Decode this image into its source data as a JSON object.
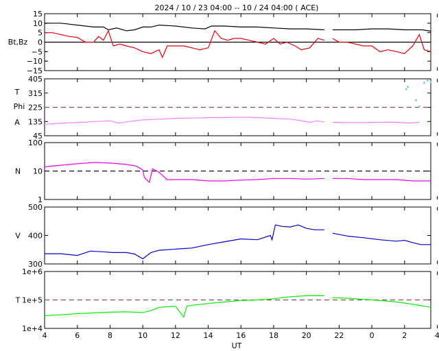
{
  "title": "2024 / 10 / 23   04:00 -- 10 / 24   04:00 ( ACE)",
  "chart_data": {
    "type": "line",
    "title": "2024 / 10 / 23   04:00 -- 10 / 24   04:00 ( ACE)",
    "xlabel": "UT",
    "x_ticks": [
      "4",
      "6",
      "8",
      "10",
      "12",
      "14",
      "16",
      "18",
      "20",
      "22",
      "0",
      "2",
      "4"
    ],
    "x_range_hours": [
      4,
      27.6
    ],
    "panels": [
      {
        "id": "magnetic-field",
        "ylabel_lines": [
          "Bt,Bz"
        ],
        "ylim": [
          -15,
          15
        ],
        "y_ticks": [
          "15",
          "10",
          "5",
          "0",
          "−5",
          "−10",
          "−15"
        ],
        "y_tick_values": [
          15,
          10,
          5,
          0,
          -5,
          -10,
          -15
        ],
        "scale": "linear",
        "reference_line": {
          "y": 0,
          "style": "solid",
          "color": "#000000"
        },
        "series": [
          {
            "key": "Bt",
            "color": "#000000",
            "points": [
              [
                4,
                10
              ],
              [
                5,
                10
              ],
              [
                6,
                9
              ],
              [
                7,
                8
              ],
              [
                7.6,
                8
              ],
              [
                7.9,
                6.5
              ],
              [
                8.4,
                7.5
              ],
              [
                9,
                6
              ],
              [
                9.5,
                6.5
              ],
              [
                10,
                8
              ],
              [
                10.5,
                8
              ],
              [
                11,
                9
              ],
              [
                12,
                8.5
              ],
              [
                13,
                7.5
              ],
              [
                13.8,
                7
              ],
              [
                14.2,
                8.5
              ],
              [
                15,
                8.5
              ],
              [
                16,
                8
              ],
              [
                17,
                8
              ],
              [
                18,
                7.5
              ],
              [
                19,
                7
              ],
              [
                20,
                7
              ],
              [
                21.1,
                6.5
              ],
              [
                21.4,
                null
              ],
              [
                21.6,
                6.5
              ],
              [
                23,
                6.5
              ],
              [
                24,
                7
              ],
              [
                25,
                7
              ],
              [
                26,
                6.5
              ],
              [
                27.1,
                6.5
              ],
              [
                27.6,
                5.8
              ]
            ]
          },
          {
            "key": "Bz",
            "color": "#e8000b",
            "points": [
              [
                4,
                5
              ],
              [
                4.5,
                5
              ],
              [
                5,
                4
              ],
              [
                5.5,
                3
              ],
              [
                6,
                2.5
              ],
              [
                6.5,
                0
              ],
              [
                7,
                0
              ],
              [
                7.3,
                3
              ],
              [
                7.6,
                1
              ],
              [
                7.9,
                6
              ],
              [
                8.2,
                -2
              ],
              [
                8.6,
                -1
              ],
              [
                9,
                -2
              ],
              [
                9.5,
                -3
              ],
              [
                10,
                -5
              ],
              [
                10.5,
                -6
              ],
              [
                11,
                -4
              ],
              [
                11.2,
                -8
              ],
              [
                11.5,
                -2
              ],
              [
                12,
                -2
              ],
              [
                12.5,
                -2
              ],
              [
                13,
                -3
              ],
              [
                13.5,
                -4
              ],
              [
                14,
                -3
              ],
              [
                14.4,
                6
              ],
              [
                14.8,
                2
              ],
              [
                15.2,
                1
              ],
              [
                15.6,
                2
              ],
              [
                16,
                2
              ],
              [
                16.5,
                1
              ],
              [
                17,
                0
              ],
              [
                17.5,
                -1
              ],
              [
                18,
                2
              ],
              [
                18.4,
                -1
              ],
              [
                18.8,
                0
              ],
              [
                19.3,
                -2
              ],
              [
                19.7,
                -4
              ],
              [
                20.2,
                -3
              ],
              [
                20.7,
                2
              ],
              [
                21.1,
                1
              ],
              [
                21.4,
                null
              ],
              [
                21.6,
                2
              ],
              [
                22,
                0
              ],
              [
                22.5,
                0
              ],
              [
                23,
                -1
              ],
              [
                23.5,
                -2
              ],
              [
                24,
                -2
              ],
              [
                24.5,
                -5
              ],
              [
                25,
                -4
              ],
              [
                25.5,
                -5
              ],
              [
                26,
                -6
              ],
              [
                26.5,
                -2
              ],
              [
                26.9,
                4
              ],
              [
                27.2,
                -4
              ],
              [
                27.6,
                -5
              ]
            ]
          }
        ]
      },
      {
        "id": "angles",
        "ylabel_lines": [
          "T",
          "Phi",
          "A"
        ],
        "ylim": [
          45,
          405
        ],
        "y_ticks": [
          "405",
          "315",
          "225",
          "135",
          "45"
        ],
        "y_tick_values": [
          405,
          315,
          225,
          135,
          45
        ],
        "scale": "linear",
        "reference_line": {
          "y": 225,
          "style": "dashed",
          "color": "#8b4a4a"
        },
        "series": [
          {
            "key": "angle",
            "color": "#ff80ff",
            "points": [
              [
                4,
                117
              ],
              [
                5,
                125
              ],
              [
                6,
                128
              ],
              [
                7,
                135
              ],
              [
                8,
                140
              ],
              [
                8.5,
                125
              ],
              [
                9,
                133
              ],
              [
                10,
                145
              ],
              [
                11,
                150
              ],
              [
                12,
                155
              ],
              [
                13,
                157
              ],
              [
                14,
                160
              ],
              [
                15,
                160
              ],
              [
                16,
                162
              ],
              [
                17,
                160
              ],
              [
                18,
                155
              ],
              [
                19,
                150
              ],
              [
                19.7,
                140
              ],
              [
                20.2,
                130
              ],
              [
                20.7,
                140
              ],
              [
                21.1,
                130
              ],
              [
                21.4,
                null
              ],
              [
                21.6,
                130
              ],
              [
                22.5,
                128
              ],
              [
                23.5,
                128
              ],
              [
                24.5,
                130
              ],
              [
                25.5,
                130
              ],
              [
                26.3,
                125
              ],
              [
                26.9,
                130
              ]
            ]
          },
          {
            "key": "phi-scatter",
            "color": "#87ceeb",
            "points": [
              [
                26.1,
                340
              ],
              [
                26.2,
                355
              ],
              [
                26.7,
                270
              ],
              [
                26.9,
                230
              ],
              [
                27.2,
                380
              ],
              [
                27.4,
                395
              ],
              [
                27.6,
                385
              ]
            ]
          }
        ]
      },
      {
        "id": "density",
        "ylabel_lines": [
          "N"
        ],
        "ylim": [
          1,
          100
        ],
        "y_ticks": [
          "100",
          "10",
          "1"
        ],
        "y_tick_values": [
          100,
          10,
          1
        ],
        "scale": "log",
        "reference_line": {
          "y": 10,
          "style": "dashed",
          "color": "#000000"
        },
        "series": [
          {
            "key": "N",
            "color": "#ee00ee",
            "points": [
              [
                4,
                14
              ],
              [
                5,
                16
              ],
              [
                6,
                18
              ],
              [
                7,
                20
              ],
              [
                8,
                19
              ],
              [
                9,
                17
              ],
              [
                9.6,
                15
              ],
              [
                10,
                11
              ],
              [
                10.1,
                6
              ],
              [
                10.4,
                4
              ],
              [
                10.6,
                12
              ],
              [
                11,
                9
              ],
              [
                11.5,
                5
              ],
              [
                12,
                5
              ],
              [
                13,
                5
              ],
              [
                14,
                4.5
              ],
              [
                15,
                4.5
              ],
              [
                16,
                4.8
              ],
              [
                17,
                5
              ],
              [
                18,
                5.5
              ],
              [
                19,
                5.5
              ],
              [
                20,
                5.2
              ],
              [
                21.1,
                5.5
              ],
              [
                21.4,
                null
              ],
              [
                21.6,
                5.5
              ],
              [
                22.5,
                5.5
              ],
              [
                23.5,
                5
              ],
              [
                24.5,
                5
              ],
              [
                25.5,
                5
              ],
              [
                26.5,
                4.5
              ],
              [
                27.6,
                4.5
              ]
            ]
          }
        ]
      },
      {
        "id": "speed",
        "ylabel_lines": [
          "V"
        ],
        "ylim": [
          300,
          500
        ],
        "y_ticks": [
          "500",
          "400",
          "300"
        ],
        "y_tick_values": [
          500,
          400,
          300
        ],
        "scale": "linear",
        "reference_line": null,
        "series": [
          {
            "key": "V",
            "color": "#0000cc",
            "points": [
              [
                4,
                336
              ],
              [
                5,
                336
              ],
              [
                6,
                330
              ],
              [
                6.8,
                345
              ],
              [
                7.5,
                343
              ],
              [
                8.2,
                340
              ],
              [
                9,
                340
              ],
              [
                9.5,
                335
              ],
              [
                10,
                318
              ],
              [
                10.5,
                340
              ],
              [
                11,
                348
              ],
              [
                12,
                352
              ],
              [
                13,
                356
              ],
              [
                14,
                368
              ],
              [
                15,
                378
              ],
              [
                16,
                388
              ],
              [
                17,
                385
              ],
              [
                17.8,
                400
              ],
              [
                17.9,
                385
              ],
              [
                18.1,
                437
              ],
              [
                18.5,
                432
              ],
              [
                19,
                430
              ],
              [
                19.5,
                437
              ],
              [
                20,
                425
              ],
              [
                20.5,
                420
              ],
              [
                21.1,
                420
              ],
              [
                21.4,
                null
              ],
              [
                21.6,
                408
              ],
              [
                22.5,
                398
              ],
              [
                23.5,
                392
              ],
              [
                24.5,
                385
              ],
              [
                25.5,
                380
              ],
              [
                26,
                383
              ],
              [
                26.5,
                375
              ],
              [
                27,
                368
              ],
              [
                27.6,
                368
              ]
            ]
          }
        ]
      },
      {
        "id": "temperature",
        "ylabel_lines": [
          "T"
        ],
        "ylim": [
          10000,
          1000000
        ],
        "y_ticks": [
          "1e+6",
          "1e+5",
          "1e+4"
        ],
        "y_tick_values": [
          1000000,
          100000,
          10000
        ],
        "scale": "log",
        "reference_line": {
          "y": 100000,
          "style": "dashed",
          "color": "#8b4a4a"
        },
        "series": [
          {
            "key": "T",
            "color": "#00ee00",
            "points": [
              [
                4,
                28000
              ],
              [
                5,
                30000
              ],
              [
                6,
                33000
              ],
              [
                7,
                35000
              ],
              [
                8,
                37000
              ],
              [
                9,
                38000
              ],
              [
                10,
                36000
              ],
              [
                10.5,
                42000
              ],
              [
                11,
                55000
              ],
              [
                12,
                60000
              ],
              [
                12.5,
                25000
              ],
              [
                12.7,
                60000
              ],
              [
                13,
                65000
              ],
              [
                14,
                75000
              ],
              [
                15,
                85000
              ],
              [
                16,
                95000
              ],
              [
                17,
                100000
              ],
              [
                18,
                110000
              ],
              [
                19,
                130000
              ],
              [
                20,
                140000
              ],
              [
                21.1,
                140000
              ],
              [
                21.4,
                null
              ],
              [
                21.6,
                120000
              ],
              [
                22.5,
                115000
              ],
              [
                23.5,
                105000
              ],
              [
                24.5,
                95000
              ],
              [
                25.5,
                85000
              ],
              [
                26.5,
                70000
              ],
              [
                27.6,
                55000
              ]
            ]
          }
        ]
      }
    ]
  }
}
